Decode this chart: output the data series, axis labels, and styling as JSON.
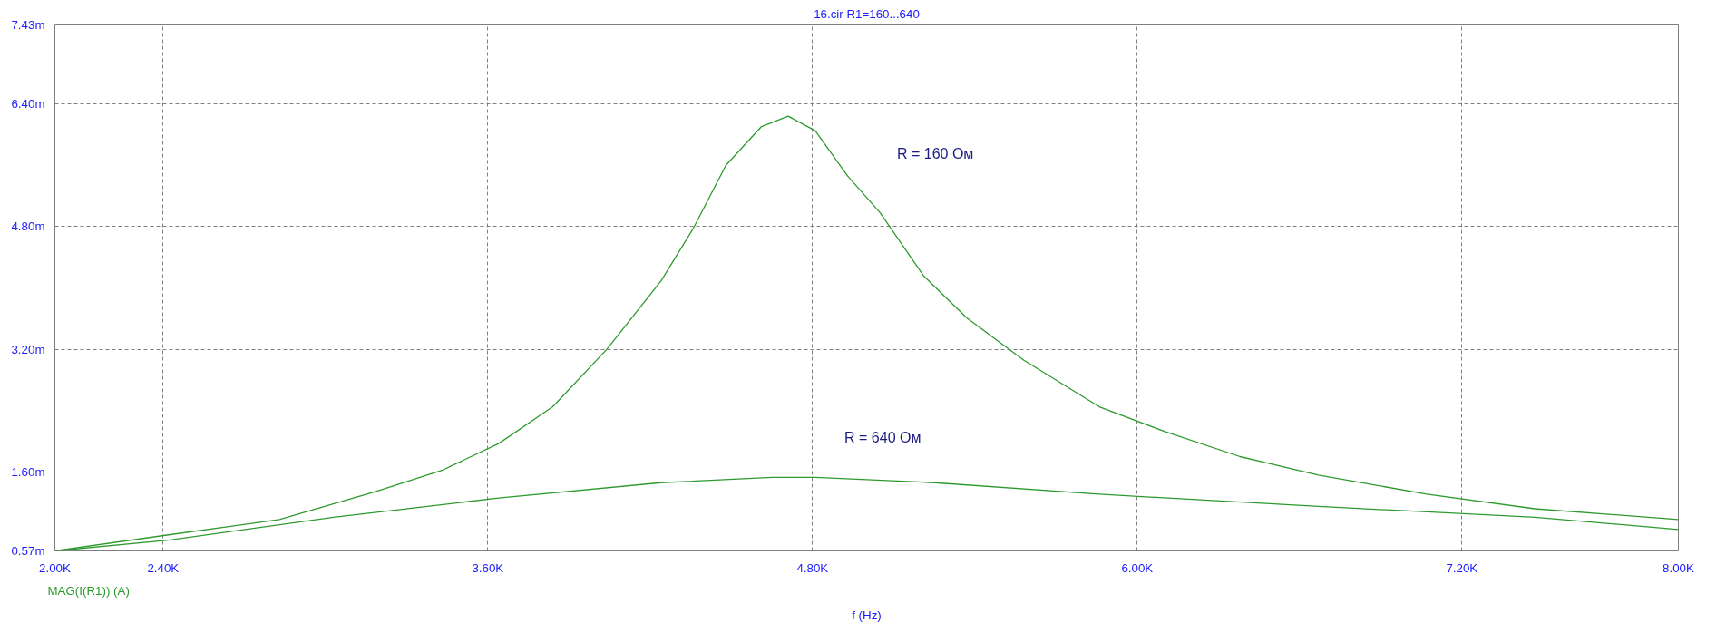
{
  "chart_data": {
    "type": "line",
    "title": "16.cir R1=160...640",
    "xlabel": "f (Hz)",
    "xlim": [
      2000,
      8000
    ],
    "ylim": [
      0.57,
      7.43
    ],
    "xticks": [
      {
        "value": 2000,
        "label": "2.00K"
      },
      {
        "value": 2400,
        "label": "2.40K"
      },
      {
        "value": 3600,
        "label": "3.60K"
      },
      {
        "value": 4800,
        "label": "4.80K"
      },
      {
        "value": 6000,
        "label": "6.00K"
      },
      {
        "value": 7200,
        "label": "7.20K"
      },
      {
        "value": 8000,
        "label": "8.00K"
      }
    ],
    "yticks": [
      {
        "value": 0.57,
        "label": "0.57m"
      },
      {
        "value": 1.6,
        "label": "1.60m"
      },
      {
        "value": 3.2,
        "label": "3.20m"
      },
      {
        "value": 4.8,
        "label": "4.80m"
      },
      {
        "value": 6.4,
        "label": "6.40m"
      },
      {
        "value": 7.43,
        "label": "7.43m"
      }
    ],
    "grid": true,
    "line_style": "solid",
    "series": [
      {
        "color": "#2e9a2e",
        "x": [
          2000,
          2420,
          2830,
          3190,
          3430,
          3640,
          3840,
          4040,
          4240,
          4360,
          4480,
          4610,
          4710,
          4810,
          4930,
          5050,
          5210,
          5370,
          5580,
          5860,
          6100,
          6380,
          6670,
          7070,
          7470,
          8000
        ],
        "values": [
          0.57,
          0.78,
          0.98,
          1.35,
          1.62,
          1.97,
          2.45,
          3.2,
          4.09,
          4.78,
          5.6,
          6.1,
          6.24,
          6.05,
          5.46,
          4.98,
          4.16,
          3.61,
          3.06,
          2.45,
          2.13,
          1.8,
          1.56,
          1.31,
          1.12,
          0.98
        ]
      },
      {
        "color": "#2e9a2e",
        "x": [
          2000,
          2420,
          3030,
          3640,
          4240,
          4650,
          4810,
          5250,
          5860,
          6670,
          7470,
          8000
        ],
        "values": [
          0.57,
          0.71,
          1.01,
          1.26,
          1.46,
          1.53,
          1.53,
          1.46,
          1.31,
          1.15,
          1.01,
          0.85
        ]
      }
    ],
    "annotations": [
      "R = 160 Ом",
      "R = 640 Ом",
      "MAG(I(R1)) (A)"
    ]
  }
}
